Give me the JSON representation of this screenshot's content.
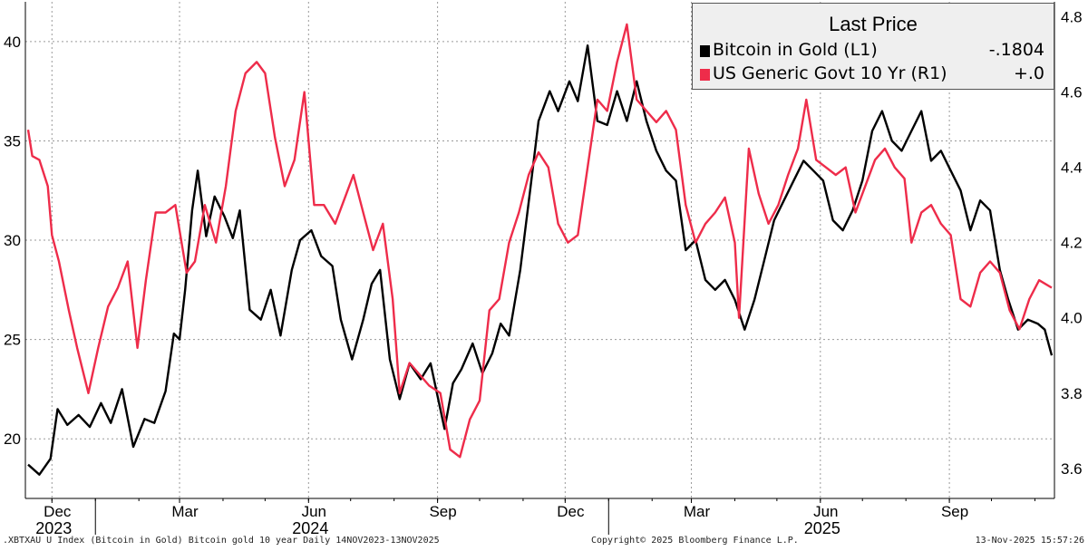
{
  "chart_data": {
    "type": "line",
    "legend": {
      "title": "Last Price",
      "placement": "top-right",
      "entries": [
        {
          "name": "Bitcoin in Gold  (L1)",
          "value": "-.1804",
          "color": "#000000"
        },
        {
          "name": "US Generic Govt 10 Yr  (R1)",
          "value": "+.0",
          "color": "#ee2c4a"
        }
      ]
    },
    "left_axis": {
      "ticks": [
        "20",
        "25",
        "30",
        "35",
        "40"
      ],
      "range": [
        17,
        42
      ]
    },
    "right_axis": {
      "ticks": [
        "3.6",
        "3.8",
        "4.0",
        "4.2",
        "4.4",
        "4.6",
        "4.8"
      ],
      "range": [
        3.52,
        4.84
      ]
    },
    "x_axis": {
      "start": "2023-11-14",
      "end": "2025-11-13",
      "month_ticks": [
        {
          "label": "Dec",
          "date": "2023-12-01"
        },
        {
          "label": "Mar",
          "date": "2024-03-01"
        },
        {
          "label": "Jun",
          "date": "2024-06-01"
        },
        {
          "label": "Sep",
          "date": "2024-09-01"
        },
        {
          "label": "Dec",
          "date": "2024-12-01"
        },
        {
          "label": "Mar",
          "date": "2025-03-01"
        },
        {
          "label": "Jun",
          "date": "2025-06-01"
        },
        {
          "label": "Sep",
          "date": "2025-09-01"
        }
      ],
      "year_labels": [
        {
          "label": "2023",
          "date": "2023-12-01"
        },
        {
          "label": "2024",
          "date": "2024-06-01"
        },
        {
          "label": "2025",
          "date": "2025-06-01"
        }
      ],
      "year_separators": [
        "2024-01-01",
        "2025-01-01"
      ]
    },
    "grid": true,
    "series": [
      {
        "name": "Bitcoin in Gold  (L1)",
        "axis": "left",
        "color": "#000000",
        "points": [
          [
            "2023-11-14",
            18.7
          ],
          [
            "2023-11-22",
            18.2
          ],
          [
            "2023-11-30",
            19.0
          ],
          [
            "2023-12-05",
            21.5
          ],
          [
            "2023-12-12",
            20.7
          ],
          [
            "2023-12-20",
            21.2
          ],
          [
            "2023-12-28",
            20.6
          ],
          [
            "2024-01-05",
            21.8
          ],
          [
            "2024-01-12",
            20.8
          ],
          [
            "2024-01-20",
            22.5
          ],
          [
            "2024-01-28",
            19.6
          ],
          [
            "2024-02-05",
            21.0
          ],
          [
            "2024-02-12",
            20.8
          ],
          [
            "2024-02-20",
            22.4
          ],
          [
            "2024-02-26",
            25.3
          ],
          [
            "2024-03-01",
            25.0
          ],
          [
            "2024-03-05",
            27.5
          ],
          [
            "2024-03-10",
            31.5
          ],
          [
            "2024-03-14",
            33.5
          ],
          [
            "2024-03-20",
            30.2
          ],
          [
            "2024-03-26",
            32.2
          ],
          [
            "2024-04-02",
            31.2
          ],
          [
            "2024-04-08",
            30.1
          ],
          [
            "2024-04-13",
            31.5
          ],
          [
            "2024-04-20",
            26.5
          ],
          [
            "2024-04-28",
            26.0
          ],
          [
            "2024-05-05",
            27.5
          ],
          [
            "2024-05-12",
            25.2
          ],
          [
            "2024-05-20",
            28.5
          ],
          [
            "2024-05-26",
            30.0
          ],
          [
            "2024-06-03",
            30.5
          ],
          [
            "2024-06-10",
            29.2
          ],
          [
            "2024-06-18",
            28.7
          ],
          [
            "2024-06-24",
            26.0
          ],
          [
            "2024-07-02",
            24.0
          ],
          [
            "2024-07-10",
            26.0
          ],
          [
            "2024-07-16",
            27.8
          ],
          [
            "2024-07-22",
            28.5
          ],
          [
            "2024-07-29",
            24.0
          ],
          [
            "2024-08-05",
            22.0
          ],
          [
            "2024-08-12",
            23.8
          ],
          [
            "2024-08-20",
            23.0
          ],
          [
            "2024-08-27",
            23.8
          ],
          [
            "2024-09-06",
            20.5
          ],
          [
            "2024-09-12",
            22.8
          ],
          [
            "2024-09-18",
            23.5
          ],
          [
            "2024-09-26",
            24.8
          ],
          [
            "2024-10-03",
            23.3
          ],
          [
            "2024-10-10",
            24.3
          ],
          [
            "2024-10-16",
            25.8
          ],
          [
            "2024-10-22",
            25.2
          ],
          [
            "2024-10-30",
            28.5
          ],
          [
            "2024-11-06",
            32.5
          ],
          [
            "2024-11-12",
            36.0
          ],
          [
            "2024-11-20",
            37.5
          ],
          [
            "2024-11-26",
            36.5
          ],
          [
            "2024-12-04",
            38.0
          ],
          [
            "2024-12-10",
            37.0
          ],
          [
            "2024-12-17",
            39.8
          ],
          [
            "2024-12-24",
            36.0
          ],
          [
            "2024-12-31",
            35.8
          ],
          [
            "2025-01-07",
            37.5
          ],
          [
            "2025-01-14",
            36.0
          ],
          [
            "2025-01-21",
            38.0
          ],
          [
            "2025-01-28",
            36.0
          ],
          [
            "2025-02-04",
            34.5
          ],
          [
            "2025-02-11",
            33.5
          ],
          [
            "2025-02-18",
            33.0
          ],
          [
            "2025-02-25",
            29.5
          ],
          [
            "2025-03-04",
            30.0
          ],
          [
            "2025-03-11",
            28.0
          ],
          [
            "2025-03-18",
            27.5
          ],
          [
            "2025-03-25",
            28.0
          ],
          [
            "2025-04-01",
            27.0
          ],
          [
            "2025-04-08",
            25.5
          ],
          [
            "2025-04-15",
            27.0
          ],
          [
            "2025-04-22",
            29.0
          ],
          [
            "2025-04-29",
            31.0
          ],
          [
            "2025-05-06",
            32.0
          ],
          [
            "2025-05-13",
            33.0
          ],
          [
            "2025-05-20",
            34.0
          ],
          [
            "2025-05-27",
            33.5
          ],
          [
            "2025-06-03",
            33.0
          ],
          [
            "2025-06-10",
            31.0
          ],
          [
            "2025-06-17",
            30.5
          ],
          [
            "2025-06-24",
            31.5
          ],
          [
            "2025-07-01",
            33.0
          ],
          [
            "2025-07-08",
            35.5
          ],
          [
            "2025-07-15",
            36.5
          ],
          [
            "2025-07-22",
            35.0
          ],
          [
            "2025-07-29",
            34.5
          ],
          [
            "2025-08-05",
            35.5
          ],
          [
            "2025-08-12",
            36.5
          ],
          [
            "2025-08-19",
            34.0
          ],
          [
            "2025-08-26",
            34.5
          ],
          [
            "2025-09-02",
            33.5
          ],
          [
            "2025-09-09",
            32.5
          ],
          [
            "2025-09-16",
            30.5
          ],
          [
            "2025-09-23",
            32.0
          ],
          [
            "2025-09-30",
            31.5
          ],
          [
            "2025-10-07",
            28.5
          ],
          [
            "2025-10-13",
            27.0
          ],
          [
            "2025-10-20",
            25.5
          ],
          [
            "2025-10-27",
            26.0
          ],
          [
            "2025-11-03",
            25.8
          ],
          [
            "2025-11-08",
            25.5
          ],
          [
            "2025-11-13",
            24.2
          ]
        ]
      },
      {
        "name": "US Generic Govt 10 Yr  (R1)",
        "axis": "right",
        "color": "#ee2c4a",
        "points": [
          [
            "2023-11-14",
            4.5
          ],
          [
            "2023-11-17",
            4.43
          ],
          [
            "2023-11-22",
            4.42
          ],
          [
            "2023-11-28",
            4.35
          ],
          [
            "2023-12-01",
            4.22
          ],
          [
            "2023-12-06",
            4.15
          ],
          [
            "2023-12-13",
            4.02
          ],
          [
            "2023-12-19",
            3.92
          ],
          [
            "2023-12-27",
            3.8
          ],
          [
            "2024-01-03",
            3.92
          ],
          [
            "2024-01-10",
            4.03
          ],
          [
            "2024-01-17",
            4.08
          ],
          [
            "2024-01-24",
            4.15
          ],
          [
            "2024-01-31",
            3.92
          ],
          [
            "2024-02-06",
            4.1
          ],
          [
            "2024-02-13",
            4.28
          ],
          [
            "2024-02-20",
            4.28
          ],
          [
            "2024-02-27",
            4.3
          ],
          [
            "2024-03-06",
            4.12
          ],
          [
            "2024-03-12",
            4.15
          ],
          [
            "2024-03-19",
            4.3
          ],
          [
            "2024-03-27",
            4.2
          ],
          [
            "2024-04-03",
            4.35
          ],
          [
            "2024-04-10",
            4.55
          ],
          [
            "2024-04-17",
            4.65
          ],
          [
            "2024-04-25",
            4.68
          ],
          [
            "2024-05-01",
            4.65
          ],
          [
            "2024-05-08",
            4.48
          ],
          [
            "2024-05-15",
            4.35
          ],
          [
            "2024-05-22",
            4.42
          ],
          [
            "2024-05-29",
            4.6
          ],
          [
            "2024-06-05",
            4.3
          ],
          [
            "2024-06-12",
            4.3
          ],
          [
            "2024-06-20",
            4.25
          ],
          [
            "2024-06-27",
            4.32
          ],
          [
            "2024-07-03",
            4.38
          ],
          [
            "2024-07-10",
            4.28
          ],
          [
            "2024-07-17",
            4.18
          ],
          [
            "2024-07-24",
            4.25
          ],
          [
            "2024-07-31",
            4.05
          ],
          [
            "2024-08-05",
            3.8
          ],
          [
            "2024-08-12",
            3.88
          ],
          [
            "2024-08-19",
            3.85
          ],
          [
            "2024-08-26",
            3.82
          ],
          [
            "2024-09-03",
            3.8
          ],
          [
            "2024-09-10",
            3.65
          ],
          [
            "2024-09-17",
            3.63
          ],
          [
            "2024-09-24",
            3.73
          ],
          [
            "2024-10-01",
            3.78
          ],
          [
            "2024-10-08",
            4.02
          ],
          [
            "2024-10-15",
            4.05
          ],
          [
            "2024-10-22",
            4.2
          ],
          [
            "2024-10-29",
            4.28
          ],
          [
            "2024-11-05",
            4.38
          ],
          [
            "2024-11-12",
            4.44
          ],
          [
            "2024-11-19",
            4.4
          ],
          [
            "2024-11-26",
            4.25
          ],
          [
            "2024-12-03",
            4.2
          ],
          [
            "2024-12-10",
            4.22
          ],
          [
            "2024-12-17",
            4.4
          ],
          [
            "2024-12-24",
            4.58
          ],
          [
            "2024-12-31",
            4.55
          ],
          [
            "2025-01-07",
            4.68
          ],
          [
            "2025-01-14",
            4.78
          ],
          [
            "2025-01-21",
            4.58
          ],
          [
            "2025-01-28",
            4.55
          ],
          [
            "2025-02-04",
            4.52
          ],
          [
            "2025-02-11",
            4.55
          ],
          [
            "2025-02-18",
            4.5
          ],
          [
            "2025-02-25",
            4.3
          ],
          [
            "2025-03-04",
            4.2
          ],
          [
            "2025-03-11",
            4.25
          ],
          [
            "2025-03-18",
            4.28
          ],
          [
            "2025-03-25",
            4.32
          ],
          [
            "2025-04-01",
            4.2
          ],
          [
            "2025-04-04",
            4.0
          ],
          [
            "2025-04-11",
            4.45
          ],
          [
            "2025-04-18",
            4.33
          ],
          [
            "2025-04-25",
            4.25
          ],
          [
            "2025-05-02",
            4.3
          ],
          [
            "2025-05-09",
            4.38
          ],
          [
            "2025-05-16",
            4.45
          ],
          [
            "2025-05-22",
            4.58
          ],
          [
            "2025-05-29",
            4.42
          ],
          [
            "2025-06-05",
            4.4
          ],
          [
            "2025-06-12",
            4.38
          ],
          [
            "2025-06-19",
            4.4
          ],
          [
            "2025-06-26",
            4.28
          ],
          [
            "2025-07-03",
            4.35
          ],
          [
            "2025-07-10",
            4.42
          ],
          [
            "2025-07-17",
            4.45
          ],
          [
            "2025-07-24",
            4.4
          ],
          [
            "2025-07-31",
            4.37
          ],
          [
            "2025-08-05",
            4.2
          ],
          [
            "2025-08-12",
            4.28
          ],
          [
            "2025-08-19",
            4.3
          ],
          [
            "2025-08-26",
            4.25
          ],
          [
            "2025-09-02",
            4.22
          ],
          [
            "2025-09-09",
            4.05
          ],
          [
            "2025-09-16",
            4.03
          ],
          [
            "2025-09-23",
            4.12
          ],
          [
            "2025-09-30",
            4.15
          ],
          [
            "2025-10-07",
            4.12
          ],
          [
            "2025-10-14",
            4.02
          ],
          [
            "2025-10-21",
            3.97
          ],
          [
            "2025-10-28",
            4.05
          ],
          [
            "2025-11-04",
            4.1
          ],
          [
            "2025-11-13",
            4.08
          ]
        ]
      }
    ]
  },
  "footer": {
    "left": ".XBTXAU U Index (Bitcoin in Gold) Bitcoin gold 10 year Daily 14NOV2023-13NOV2025",
    "center": "Copyright© 2025 Bloomberg Finance L.P.",
    "right": "13-Nov-2025 15:57:26"
  }
}
